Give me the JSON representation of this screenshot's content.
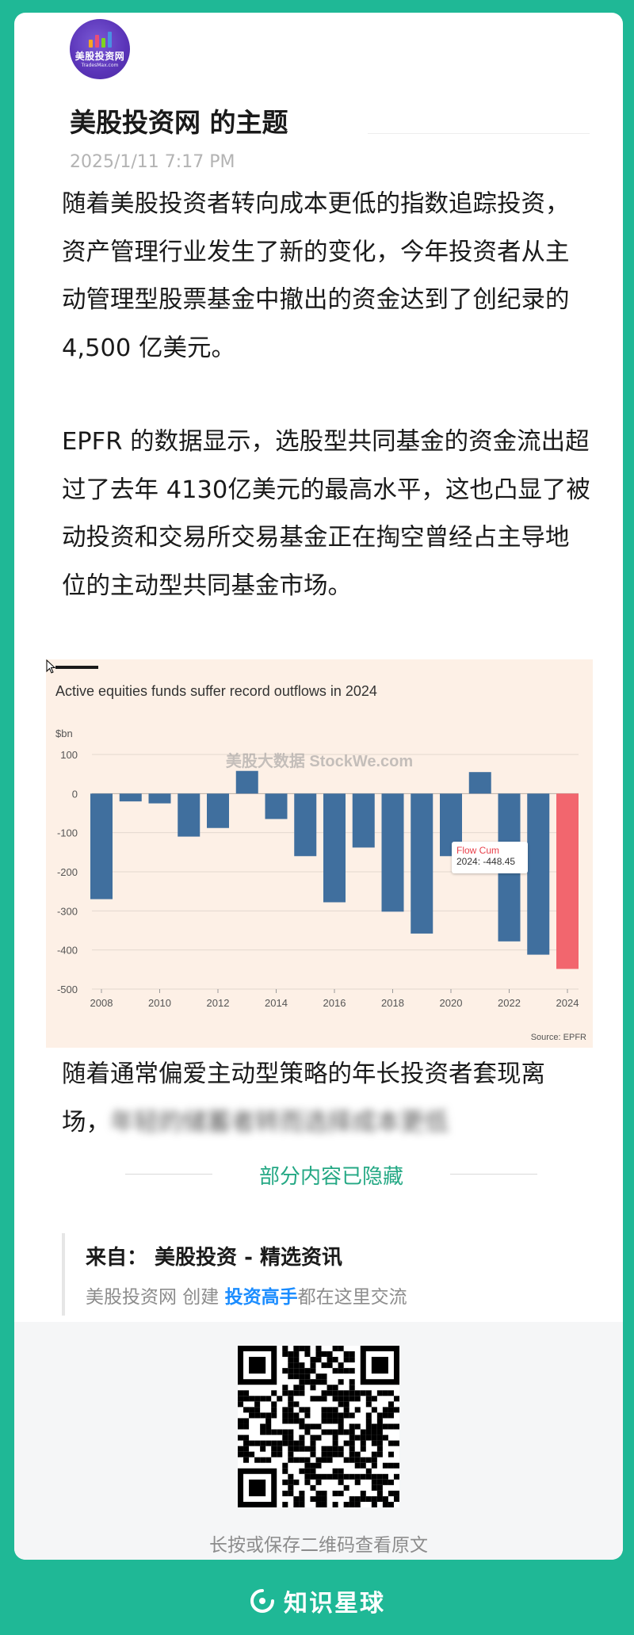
{
  "header": {
    "avatar_text": "美股投资网",
    "avatar_subtext": "TradesMax.com",
    "title": "美股投资网 的主题",
    "date": "2025/1/11 7:17 PM"
  },
  "article": {
    "paragraph1": "随着美股投资者转向成本更低的指数追踪投资，资产管理行业发生了新的变化，今年投资者从主动管理型股票基金中撤出的资金达到了创纪录的 4,500 亿美元。",
    "paragraph2": "EPFR 的数据显示，选股型共同基金的资金流出超过了去年 4130亿美元的最高水平，这也凸显了被动投资和交易所交易基金正在掏空曾经占主导地位的主动型共同基金市场。",
    "paragraph3_visible": "随着通常偏爱主动型策略的年长投资者套现离场，",
    "paragraph3_blurred": "年轻的储蓄者转而选择成本更低"
  },
  "chart_data": {
    "type": "bar",
    "title": "Active equities funds suffer record outflows in 2024",
    "ylabel": "$bn",
    "source": "Source: EPFR",
    "watermark": "美股大数据 StockWe.com",
    "ylim": [
      -500,
      100
    ],
    "yticks": [
      100,
      0,
      -100,
      -200,
      -300,
      -400,
      -500
    ],
    "xticks": [
      "2008",
      "2010",
      "2012",
      "2014",
      "2016",
      "2018",
      "2020",
      "2022",
      "2024"
    ],
    "categories": [
      "2008",
      "2009",
      "2010",
      "2011",
      "2012",
      "2013",
      "2014",
      "2015",
      "2016",
      "2017",
      "2018",
      "2019",
      "2020",
      "2021",
      "2022",
      "2023",
      "2024"
    ],
    "values": [
      -270,
      -20,
      -25,
      -110,
      -88,
      58,
      -65,
      -160,
      -278,
      -138,
      -302,
      -358,
      -160,
      55,
      -378,
      -412,
      -448.45
    ],
    "colors": {
      "default": "#406f9e",
      "highlight": "#f2666e"
    },
    "highlight_index": 16,
    "tooltip": {
      "series": "Flow Cum",
      "label": "2024: -448.45"
    }
  },
  "hidden_notice": "部分内容已隐藏",
  "source": {
    "from_line": "来自： 美股投资 - 精选资讯",
    "desc_prefix": "美股投资网 创建 ",
    "desc_highlight": "投资高手",
    "desc_suffix": "都在这里交流"
  },
  "qr": {
    "caption": "长按或保存二维码查看原文"
  },
  "footer": {
    "brand": "知识星球"
  }
}
